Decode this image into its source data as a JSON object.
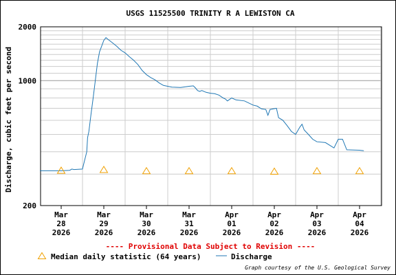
{
  "chart_data": {
    "type": "line",
    "title": "USGS 11525500 TRINITY R A LEWISTON CA",
    "ylabel": "Discharge, cubic feet per second",
    "xlabel": "",
    "y_scale": "log",
    "ylim": [
      200,
      2000
    ],
    "y_ticks": [
      {
        "value": 200,
        "label": "200"
      },
      {
        "value": 1000,
        "label": "1000"
      },
      {
        "value": 2000,
        "label": "2000"
      }
    ],
    "xlim": [
      0,
      7.5
    ],
    "x_ticks": [
      {
        "value": 0,
        "label": [
          "Mar",
          "28",
          "2026"
        ]
      },
      {
        "value": 1,
        "label": [
          "Mar",
          "29",
          "2026"
        ]
      },
      {
        "value": 2,
        "label": [
          "Mar",
          "30",
          "2026"
        ]
      },
      {
        "value": 3,
        "label": [
          "Mar",
          "31",
          "2026"
        ]
      },
      {
        "value": 4,
        "label": [
          "Apr",
          "01",
          "2026"
        ]
      },
      {
        "value": 5,
        "label": [
          "Apr",
          "02",
          "2026"
        ]
      },
      {
        "value": 6,
        "label": [
          "Apr",
          "03",
          "2026"
        ]
      },
      {
        "value": 7,
        "label": [
          "Apr",
          "04",
          "2026"
        ]
      }
    ],
    "grid": true,
    "series": [
      {
        "name": "Discharge",
        "color": "#1f77b4",
        "x": [
          -0.5,
          0.0,
          0.2,
          0.25,
          0.3,
          0.5,
          0.52,
          0.6,
          0.62,
          0.65,
          0.7,
          0.75,
          0.8,
          0.85,
          0.9,
          1.0,
          1.05,
          1.1,
          1.2,
          1.3,
          1.4,
          1.5,
          1.6,
          1.7,
          1.8,
          1.9,
          2.0,
          2.1,
          2.2,
          2.3,
          2.4,
          2.6,
          2.8,
          3.0,
          3.1,
          3.15,
          3.2,
          3.25,
          3.3,
          3.4,
          3.5,
          3.6,
          3.7,
          3.8,
          3.85,
          3.9,
          4.0,
          4.05,
          4.1,
          4.3,
          4.5,
          4.6,
          4.7,
          4.8,
          4.85,
          4.9,
          5.05,
          5.1,
          5.2,
          5.3,
          5.4,
          5.5,
          5.6,
          5.65,
          5.7,
          5.8,
          5.9,
          6.0,
          6.2,
          6.4,
          6.5,
          6.6,
          6.7,
          7.0,
          7.1
        ],
        "values": [
          313,
          313,
          315,
          320,
          318,
          320,
          335,
          400,
          480,
          520,
          650,
          800,
          1000,
          1250,
          1450,
          1680,
          1740,
          1700,
          1630,
          1560,
          1480,
          1430,
          1360,
          1300,
          1230,
          1140,
          1080,
          1040,
          1010,
          970,
          940,
          920,
          915,
          930,
          935,
          910,
          880,
          870,
          880,
          860,
          850,
          845,
          830,
          800,
          790,
          770,
          800,
          790,
          780,
          770,
          730,
          720,
          695,
          690,
          640,
          690,
          700,
          620,
          600,
          560,
          520,
          500,
          550,
          570,
          530,
          500,
          470,
          455,
          450,
          420,
          470,
          470,
          410,
          408,
          405
        ]
      }
    ],
    "markers": {
      "name": "Median daily statistic (64 years)",
      "color": "#f0a000",
      "x": [
        0.0,
        1.0,
        2.0,
        3.0,
        4.0,
        5.0,
        6.0,
        7.0
      ],
      "values": [
        314,
        317,
        312,
        312,
        312,
        310,
        312,
        312
      ]
    },
    "annotation": "---- Provisional Data Subject to Revision ----",
    "legend": [
      {
        "symbol": "triangle",
        "label": "Median daily statistic (64 years)"
      },
      {
        "symbol": "line",
        "label": "Discharge"
      }
    ],
    "legend_placement": "bottom",
    "credit": "Graph courtesy of the U.S. Geological Survey"
  }
}
